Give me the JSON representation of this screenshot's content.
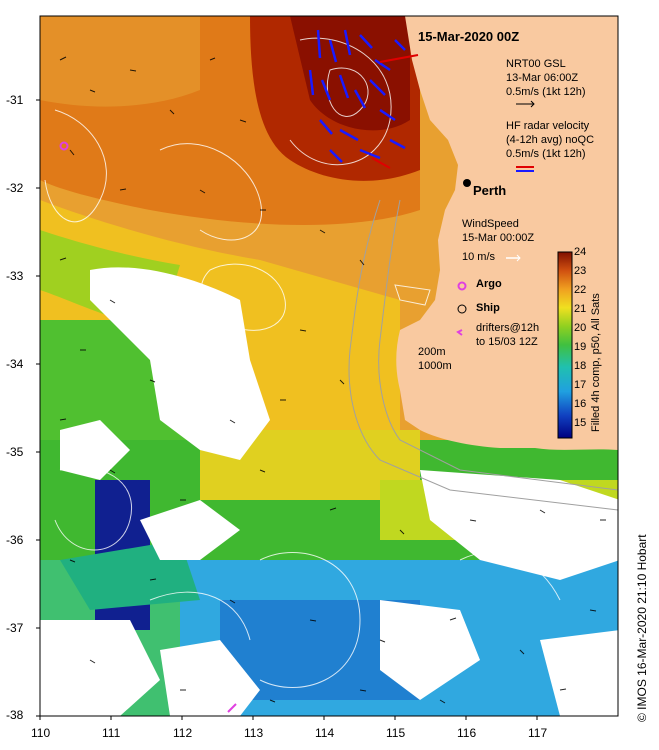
{
  "header": {
    "timestamp_title": "15-Mar-2020 00Z"
  },
  "city": {
    "name": "Perth"
  },
  "legend": {
    "nrt_line1": "NRT00 GSL",
    "nrt_line2": "13-Mar 06:00Z",
    "nrt_line3": "0.5m/s (1kt 12h)",
    "hf_line1": "HF radar velocity",
    "hf_line2": "(4-12h avg) noQC",
    "hf_line3": "0.5m/s (1kt 12h)",
    "wind_line1": "WindSpeed",
    "wind_line2": "15-Mar 00:00Z",
    "wind_line3": "10 m/s",
    "argo_label": "Argo",
    "ship_label": "Ship",
    "drifters_line1": "drifters@12h",
    "drifters_line2": "to 15/03 12Z",
    "isobath1": "200m",
    "isobath2": "1000m"
  },
  "colorbar": {
    "title": "Filled 4h comp, p50, All Sats",
    "ticks": [
      "24",
      "23",
      "22",
      "21",
      "20",
      "19",
      "18",
      "17",
      "16",
      "15"
    ]
  },
  "axes": {
    "y_ticks": [
      "-31",
      "-32",
      "-33",
      "-34",
      "-35",
      "-36",
      "-37",
      "-38"
    ],
    "x_ticks": [
      "110",
      "111",
      "112",
      "113",
      "114",
      "115",
      "116",
      "117"
    ]
  },
  "credit": "© IMOS 16-Mar-2020 21:10 Hobart",
  "colors": {
    "land": "#f9c9a0",
    "cloud": "#ffffff",
    "current_arrows": "#000000",
    "hf_radar_arrows": "#1a1aff",
    "hf_radar_red": "#e00000",
    "argo": "#e040e0",
    "contours": "#ffffff"
  }
}
